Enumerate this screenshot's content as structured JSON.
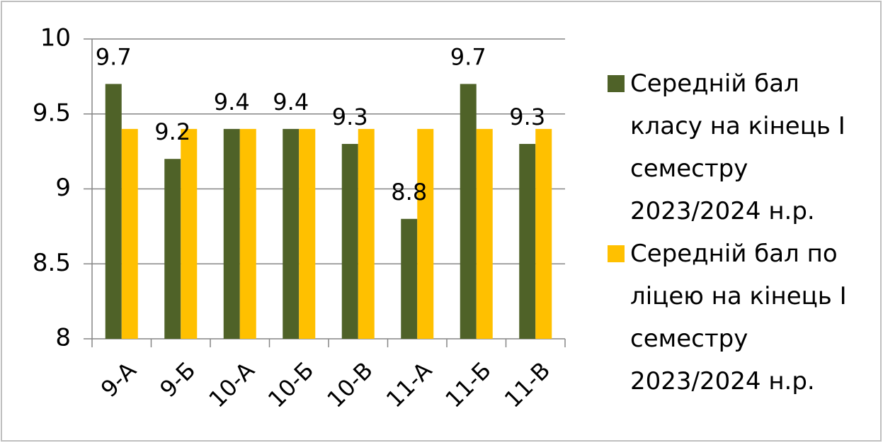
{
  "chart_data": {
    "type": "bar",
    "categories": [
      "9-А",
      "9-Б",
      "10-А",
      "10-Б",
      "10-В",
      "11-А",
      "11-Б",
      "11-В"
    ],
    "series": [
      {
        "name": "Середній бал класу на кінець I семестру 2023/2024 н.р.",
        "color": "#4f6228",
        "values": [
          9.7,
          9.2,
          9.4,
          9.4,
          9.3,
          8.8,
          9.7,
          9.3
        ],
        "data_labels": true
      },
      {
        "name": "Середній бал по ліцею на кінець I семестру 2023/2024 н.р.",
        "color": "#ffc000",
        "values": [
          9.4,
          9.4,
          9.4,
          9.4,
          9.4,
          9.4,
          9.4,
          9.4
        ],
        "data_labels": false
      }
    ],
    "ylim": [
      8,
      10
    ],
    "yticks": [
      8,
      8.5,
      9,
      9.5,
      10
    ],
    "grid": true,
    "legend": "right"
  }
}
